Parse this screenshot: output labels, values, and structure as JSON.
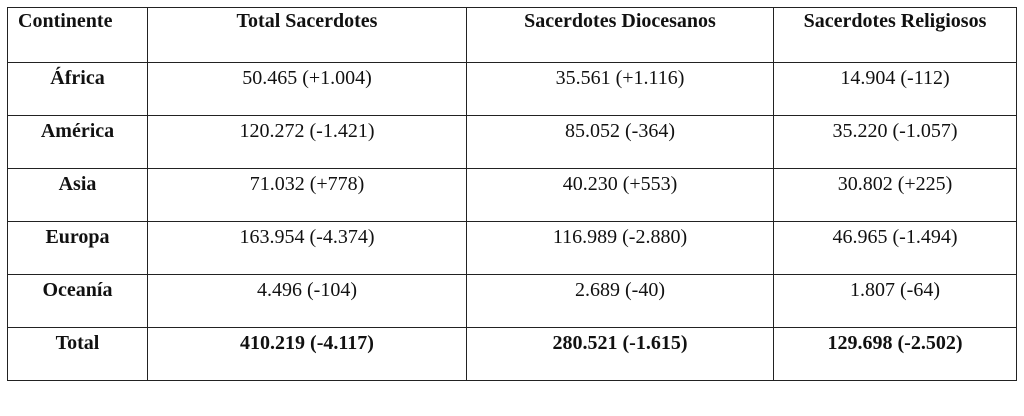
{
  "table": {
    "header": [
      "Continente",
      "Total Sacerdotes",
      "Sacerdotes Diocesanos",
      "Sacerdotes Religiosos"
    ],
    "rows": [
      [
        "África",
        "50.465 (+1.004)",
        "35.561 (+1.116)",
        "14.904 (-112)"
      ],
      [
        "América",
        "120.272 (-1.421)",
        "85.052 (-364)",
        "35.220 (-1.057)"
      ],
      [
        "Asia",
        "71.032 (+778)",
        "40.230 (+553)",
        "30.802 (+225)"
      ],
      [
        "Europa",
        "163.954 (-4.374)",
        "116.989 (-2.880)",
        "46.965 (-1.494)"
      ],
      [
        "Oceanía",
        "4.496 (-104)",
        "2.689 (-40)",
        "1.807 (-64)"
      ],
      [
        "Total",
        "410.219 (-4.117)",
        "280.521 (-1.615)",
        "129.698 (-2.502)"
      ]
    ]
  }
}
